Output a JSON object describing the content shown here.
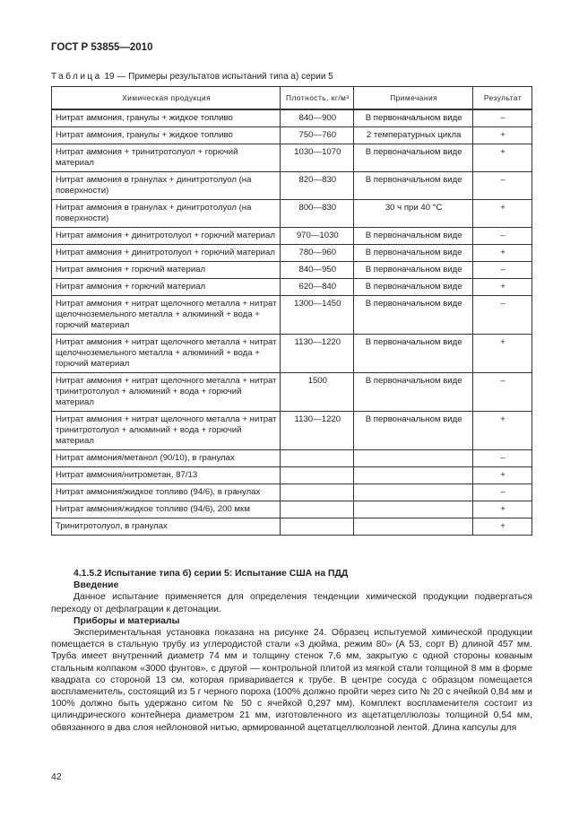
{
  "header": {
    "doc_id": "ГОСТ Р 53855—2010"
  },
  "table": {
    "caption_prefix": "Таблица",
    "caption_rest": " 19 — Примеры результатов испытаний типа а) серии 5",
    "columns": [
      "Химическая продукция",
      "Плотность, кг/м³",
      "Примечания",
      "Результат"
    ],
    "rows": [
      [
        "Нитрат аммония, гранулы + жидкое топливо",
        "840—900",
        "В первоначальном виде",
        "–"
      ],
      [
        "Нитрат аммония, гранулы + жидкое топливо",
        "750—760",
        "2 температурных цикла",
        "+"
      ],
      [
        "Нитрат аммония + тринитротолуол + горючий материал",
        "1030—1070",
        "В первоначальном виде",
        "+"
      ],
      [
        "Нитрат аммония в гранулах + динитротолуол (на поверхности)",
        "820—830",
        "В первоначальном виде",
        "–"
      ],
      [
        "Нитрат аммония в гранулах + динитротолуол (на поверхности)",
        "800—830",
        "30 ч при 40 °С",
        "+"
      ],
      [
        "Нитрат аммония + динитротолуол + горючий материал",
        "970—1030",
        "В первоначальном виде",
        "–"
      ],
      [
        "Нитрат аммония + динитротолуол + горючий материал",
        "780—960",
        "В первоначальном виде",
        "+"
      ],
      [
        "Нитрат аммония + горючий материал",
        "840—950",
        "В первоначальном виде",
        "–"
      ],
      [
        "Нитрат аммония + горючий материал",
        "620—840",
        "В первоначальном виде",
        "+"
      ],
      [
        "Нитрат аммония + нитрат щелочного металла + нитрат щелочноземельного металла + алюминий + вода + горючий материал",
        "1300—1450",
        "В первоначальном виде",
        "–"
      ],
      [
        "Нитрат аммония + нитрат щелочного металла + нитрат щелочноземельного металла + алюминий + вода + горючий материал",
        "1130—1220",
        "В первоначальном виде",
        "+"
      ],
      [
        "Нитрат аммония + нитрат щелочного металла + нитрат тринитротолуол + алюминий + вода + горючий материал",
        "1500",
        "В первоначальном виде",
        "–"
      ],
      [
        "Нитрат аммония + нитрат щелочного металла + нитрат тринитротолуол + алюминий + вода + горючий материал",
        "1130—1220",
        "В первоначальном виде",
        "+"
      ],
      [
        "Нитрат аммония/метанол (90/10), в гранулах",
        "",
        "",
        "–"
      ],
      [
        "Нитрат аммония/нитрометан, 87/13",
        "",
        "",
        "+"
      ],
      [
        "Нитрат аммония/жидкое топливо (94/6), в гранулах",
        "",
        "",
        "–"
      ],
      [
        "Нитрат аммония/жидкое топливо (94/6), 200 мкм",
        "",
        "",
        "+"
      ],
      [
        "Тринитротолуол, в гранулах",
        "",
        "",
        "+"
      ]
    ]
  },
  "section": {
    "title": "4.1.5.2 Испытание типа б) серии 5: Испытание США на ПДД",
    "intro_heading": "Введение",
    "intro_text": "Данное испытание применяется для определения тенденции химической продукции подвергаться переходу от дефлаграции к детонации.",
    "materials_heading": "Приборы и материалы",
    "materials_text": "Экспериментальная установка показана на рисунке 24. Образец испытуемой химической продукции помещается в стальную трубу из углеродистой стали «3 дюйма, режим 80» (А 53, сорт В) длиной 457 мм. Труба имеет внутренний диаметр 74 мм и толщину стенок 7,6 мм, закрытую с одной стороны кованым стальным колпаком «3000 фунтов», с другой — контрольной плитой из мягкой стали толщиной 8 мм в форме квадрата со стороной 13 см, которая приваривается к трубе. В центре сосуда с образцом помещается воспламенитель, состоящий из 5 г черного пороха (100% должно пройти через сито № 20 с ячейкой 0,84 мм и 100% должно быть удержано ситом № 50 с ячейкой 0,297 мм). Комплект воспламенителя состоит из цилиндрического контейнера диаметром 21 мм, изготовленного из ацетатцеллюлозы толщиной 0,54 мм, обвязанного в два слоя нейлоновой нитью, армированной ацетатцеллюлозной лентой. Длина капсулы для"
  },
  "footer": {
    "page_number": "42"
  }
}
